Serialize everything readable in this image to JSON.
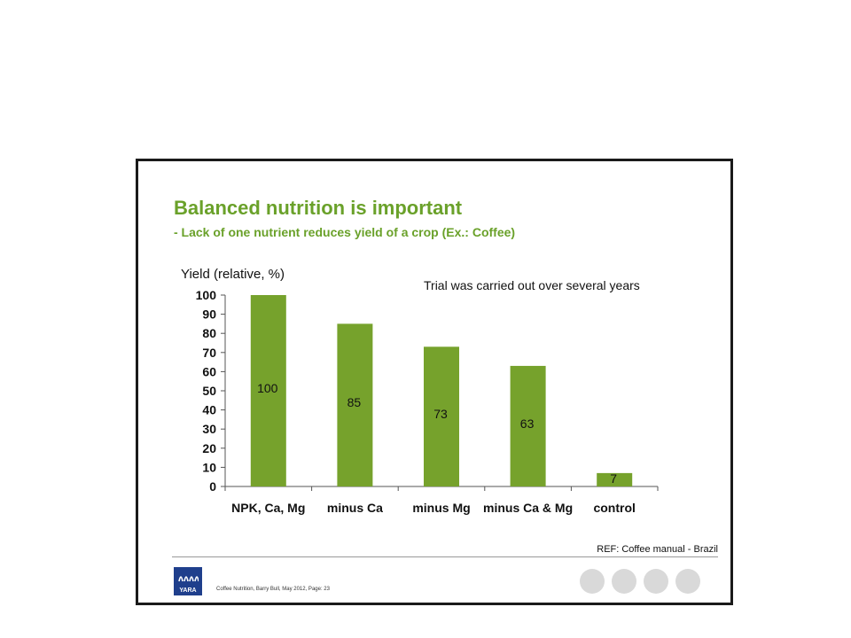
{
  "slide": {
    "title": "Balanced nutrition is important",
    "subtitle": "- Lack of one nutrient reduces yield of a crop (Ex.: Coffee)",
    "ref": "REF: Coffee manual - Brazil",
    "footer_note": "Coffee Nutrition,   Barry Bull,   May 2012,   Page: 23",
    "logo_text": "YARA",
    "colors": {
      "title": "#6aa12a",
      "bar": "#76a22c",
      "frame": "#1a1a1a"
    }
  },
  "chart_data": {
    "type": "bar",
    "title": "",
    "ylabel": "Yield (relative, %)",
    "xlabel": "",
    "annotation": "Trial was carried out over several years",
    "categories": [
      "NPK, Ca, Mg",
      "minus Ca",
      "minus Mg",
      "minus Ca & Mg",
      "control"
    ],
    "values": [
      100,
      85,
      73,
      63,
      7
    ],
    "data_labels": [
      "100",
      "85",
      "73",
      "63",
      "7"
    ],
    "ylim": [
      0,
      100
    ],
    "yticks": [
      0,
      10,
      20,
      30,
      40,
      50,
      60,
      70,
      80,
      90,
      100
    ],
    "grid": false,
    "legend": "none"
  }
}
